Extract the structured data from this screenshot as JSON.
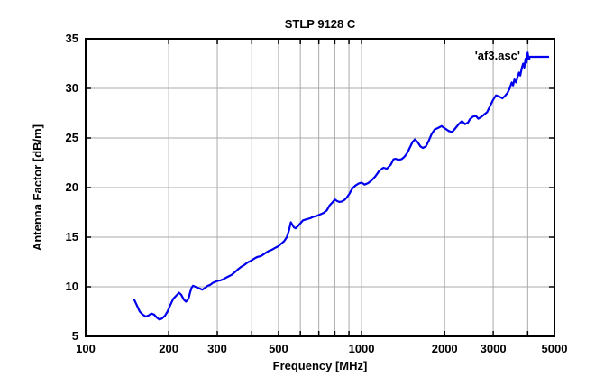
{
  "chart": {
    "title": "STLP 9128 C",
    "xlabel": "Frequency [MHz]",
    "ylabel": "Antenna Factor [dB/m]",
    "legend_label": "'af3.asc'",
    "colors": {
      "line": "#0000ee",
      "grid": "#aaaaaa",
      "border": "#000000",
      "background": "#ffffff",
      "text": "#000000"
    }
  },
  "chart_data": {
    "type": "line",
    "title": "STLP 9128 C",
    "xlabel": "Frequency [MHz]",
    "ylabel": "Antenna Factor [dB/m]",
    "x_scale": "log",
    "xlim": [
      100,
      5000
    ],
    "ylim": [
      5,
      35
    ],
    "grid": true,
    "legend_position": "top-right-inside",
    "x_ticks_labeled": [
      100,
      200,
      300,
      500,
      1000,
      2000,
      3000,
      5000
    ],
    "x_gridlines": [
      200,
      300,
      400,
      500,
      600,
      700,
      800,
      900,
      1000,
      2000,
      3000,
      4000,
      5000
    ],
    "y_ticks": [
      5,
      10,
      15,
      20,
      25,
      30,
      35
    ],
    "y_gridlines": [
      10,
      15,
      20,
      25,
      30
    ],
    "series": [
      {
        "name": "'af3.asc'",
        "x": [
          150,
          153,
          157,
          161,
          165,
          169,
          173,
          177,
          181,
          185,
          189,
          194,
          198,
          203,
          208,
          213,
          218,
          222,
          227,
          231,
          236,
          239,
          242,
          245,
          250,
          255,
          260,
          265,
          271,
          277,
          283,
          289,
          295,
          301,
          308,
          315,
          322,
          330,
          338,
          348,
          358,
          368,
          376,
          386,
          396,
          406,
          418,
          432,
          446,
          460,
          474,
          488,
          500,
          512,
          524,
          536,
          546,
          554,
          560,
          568,
          577,
          587,
          600,
          614,
          630,
          650,
          668,
          688,
          708,
          728,
          748,
          766,
          784,
          800,
          815,
          830,
          848,
          866,
          884,
          904,
          926,
          950,
          975,
          1000,
          1025,
          1055,
          1085,
          1120,
          1160,
          1200,
          1235,
          1275,
          1305,
          1330,
          1360,
          1395,
          1430,
          1465,
          1500,
          1530,
          1560,
          1595,
          1635,
          1670,
          1710,
          1750,
          1795,
          1840,
          1890,
          1950,
          2010,
          2070,
          2130,
          2190,
          2250,
          2310,
          2370,
          2430,
          2470,
          2530,
          2590,
          2650,
          2720,
          2790,
          2850,
          2920,
          2990,
          3070,
          3140,
          3240,
          3310,
          3380,
          3440,
          3500,
          3540,
          3580,
          3630,
          3680,
          3720,
          3760,
          3810,
          3850,
          3890,
          3930,
          3960,
          4000,
          4030,
          4060
        ],
        "y": [
          8.7,
          8.2,
          7.5,
          7.2,
          7.0,
          7.1,
          7.3,
          7.2,
          6.9,
          6.7,
          6.8,
          7.1,
          7.5,
          8.2,
          8.8,
          9.1,
          9.4,
          9.2,
          8.7,
          8.5,
          8.8,
          9.4,
          9.9,
          10.1,
          10.0,
          9.9,
          9.8,
          9.7,
          9.9,
          10.1,
          10.2,
          10.4,
          10.5,
          10.6,
          10.65,
          10.75,
          10.9,
          11.05,
          11.2,
          11.5,
          11.8,
          12.05,
          12.2,
          12.45,
          12.6,
          12.8,
          13.0,
          13.1,
          13.35,
          13.6,
          13.75,
          13.95,
          14.1,
          14.35,
          14.6,
          15.0,
          15.7,
          16.5,
          16.3,
          16.0,
          15.9,
          16.1,
          16.4,
          16.7,
          16.8,
          16.9,
          17.05,
          17.15,
          17.3,
          17.45,
          17.7,
          18.2,
          18.5,
          18.8,
          18.65,
          18.55,
          18.6,
          18.75,
          19.0,
          19.4,
          19.9,
          20.2,
          20.4,
          20.5,
          20.3,
          20.45,
          20.7,
          21.1,
          21.7,
          22.0,
          21.9,
          22.3,
          22.85,
          22.9,
          22.8,
          22.85,
          23.1,
          23.5,
          24.1,
          24.6,
          24.85,
          24.6,
          24.15,
          24.0,
          24.15,
          24.7,
          25.4,
          25.85,
          26.0,
          26.2,
          25.95,
          25.7,
          25.6,
          26.0,
          26.4,
          26.7,
          26.4,
          26.55,
          26.9,
          27.15,
          27.25,
          26.95,
          27.15,
          27.4,
          27.6,
          28.2,
          28.8,
          29.3,
          29.2,
          29.0,
          29.25,
          29.55,
          30.0,
          30.6,
          30.3,
          30.9,
          30.6,
          31.2,
          31.6,
          31.3,
          32.1,
          32.5,
          32.1,
          33.0,
          32.6,
          33.6,
          33.0,
          33.0
        ]
      }
    ]
  }
}
